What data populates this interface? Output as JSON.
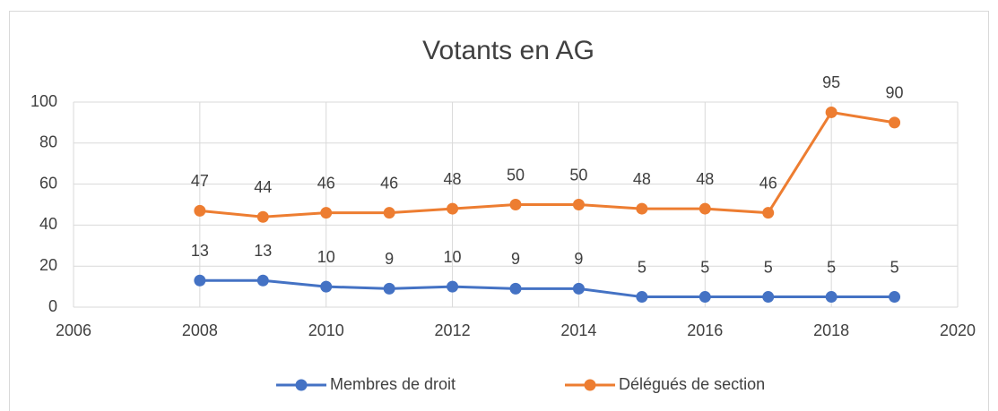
{
  "chart_data": {
    "type": "line",
    "title": "Votants en AG",
    "x": [
      2008,
      2009,
      2010,
      2011,
      2012,
      2013,
      2014,
      2015,
      2016,
      2017,
      2018,
      2019
    ],
    "series": [
      {
        "name": "Membres de droit",
        "color": "#4472c4",
        "values": [
          13,
          13,
          10,
          9,
          10,
          9,
          9,
          5,
          5,
          5,
          5,
          5
        ]
      },
      {
        "name": "Délégués de section",
        "color": "#ed7d31",
        "values": [
          47,
          44,
          46,
          46,
          48,
          50,
          50,
          48,
          48,
          46,
          95,
          90
        ]
      }
    ],
    "xlim": [
      2006,
      2020
    ],
    "xticks": [
      2006,
      2008,
      2010,
      2012,
      2014,
      2016,
      2018,
      2020
    ],
    "ylim": [
      0,
      100
    ],
    "yticks": [
      0,
      20,
      40,
      60,
      80,
      100
    ],
    "grid": true,
    "legend": "bottom"
  }
}
